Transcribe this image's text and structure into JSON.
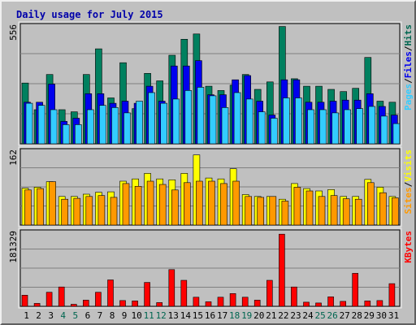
{
  "chart_data": [
    {
      "type": "bar",
      "title": "Daily usage for July 2015",
      "max_label": "556",
      "ylim": [
        0,
        556
      ],
      "grid": true,
      "categories": [
        "1",
        "2",
        "3",
        "4",
        "5",
        "6",
        "7",
        "8",
        "9",
        "10",
        "11",
        "12",
        "13",
        "14",
        "15",
        "16",
        "17",
        "18",
        "19",
        "20",
        "21",
        "22",
        "23",
        "24",
        "25",
        "26",
        "27",
        "28",
        "29",
        "30",
        "31"
      ],
      "weekend_days": [
        "4",
        "5",
        "11",
        "12",
        "18",
        "19",
        "25",
        "26"
      ],
      "legend": [
        {
          "label": "Pages",
          "color": "#33ccff"
        },
        {
          "label": "Files",
          "color": "#0000ee"
        },
        {
          "label": "Hits",
          "color": "#006650"
        }
      ],
      "separator": "/",
      "series": [
        {
          "name": "Hits",
          "color": "#00805f",
          "values": [
            285,
            160,
            325,
            160,
            150,
            325,
            445,
            215,
            380,
            165,
            330,
            295,
            415,
            490,
            515,
            270,
            250,
            275,
            325,
            255,
            290,
            550,
            305,
            270,
            270,
            255,
            245,
            260,
            405,
            200,
            195
          ]
        },
        {
          "name": "Files",
          "color": "#0000ee",
          "values": [
            195,
            195,
            280,
            105,
            120,
            235,
            235,
            190,
            200,
            190,
            270,
            200,
            365,
            365,
            390,
            230,
            230,
            300,
            320,
            200,
            135,
            300,
            300,
            195,
            195,
            200,
            205,
            205,
            235,
            175,
            135
          ]
        },
        {
          "name": "Pages",
          "color": "#33ccff",
          "values": [
            190,
            180,
            160,
            90,
            90,
            160,
            180,
            170,
            145,
            200,
            240,
            190,
            210,
            250,
            265,
            225,
            170,
            240,
            210,
            150,
            120,
            215,
            215,
            160,
            160,
            145,
            160,
            165,
            175,
            130,
            95
          ]
        }
      ]
    },
    {
      "type": "bar",
      "max_label": "162",
      "ylim": [
        0,
        162
      ],
      "grid": true,
      "legend": [
        {
          "label": "Sites",
          "color": "#ff9900"
        },
        {
          "label": "Visits",
          "color": "#ffff00"
        }
      ],
      "separator": "/",
      "series": [
        {
          "name": "Visits",
          "color": "#ffff00",
          "values": [
            80,
            82,
            94,
            62,
            62,
            67,
            71,
            72,
            95,
            100,
            112,
            100,
            98,
            112,
            152,
            102,
            100,
            122,
            66,
            62,
            62,
            56,
            90,
            79,
            74,
            77,
            62,
            62,
            99,
            82,
            62
          ]
        },
        {
          "name": "Sites",
          "color": "#ff9900",
          "values": [
            76,
            79,
            94,
            56,
            58,
            62,
            64,
            60,
            90,
            84,
            95,
            88,
            76,
            92,
            95,
            95,
            90,
            95,
            62,
            60,
            62,
            52,
            82,
            74,
            62,
            64,
            57,
            56,
            92,
            70,
            59
          ]
        }
      ]
    },
    {
      "type": "bar",
      "max_label": "181329",
      "ylim": [
        0,
        181329
      ],
      "grid": true,
      "legend": [
        {
          "label": "KBytes",
          "color": "#ff0000"
        }
      ],
      "series": [
        {
          "name": "KBytes",
          "color": "#ff0000",
          "values": [
            27000,
            7000,
            34000,
            47000,
            5000,
            15000,
            34000,
            64000,
            14000,
            13000,
            58000,
            9000,
            89000,
            63000,
            22000,
            11000,
            22000,
            31000,
            22000,
            15000,
            63000,
            175000,
            47000,
            10000,
            8000,
            23000,
            12000,
            80000,
            13000,
            14000,
            55000
          ]
        }
      ]
    }
  ]
}
